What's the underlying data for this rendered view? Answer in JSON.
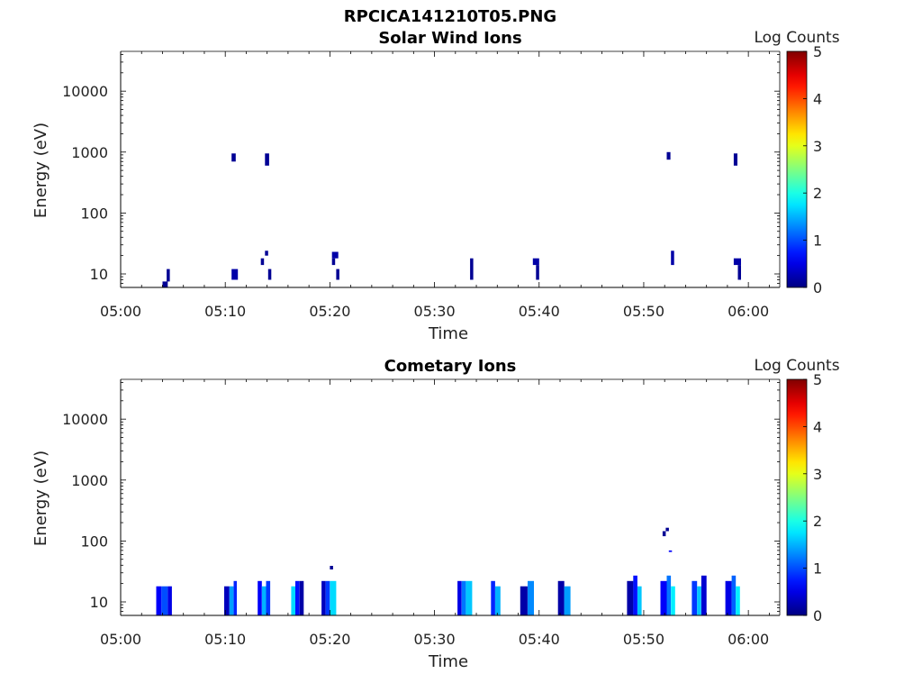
{
  "figure_title": "RPCICA141210T05.PNG",
  "colormap": {
    "low": "#00007f",
    "mid": "#00c8ff",
    "high": "#7f0000"
  },
  "chart_data": [
    {
      "type": "heatmap",
      "title": "Solar Wind Ions",
      "xlabel": "Time",
      "ylabel": "Energy (eV)",
      "xscale": "time",
      "yscale": "log",
      "xlim": [
        "05:00",
        "06:03"
      ],
      "ylim": [
        6,
        45000
      ],
      "xticks": [
        "05:00",
        "05:10",
        "05:20",
        "05:30",
        "05:40",
        "05:50",
        "06:00"
      ],
      "yticks": [
        "10",
        "100",
        "1000",
        "10000"
      ],
      "colorbar": {
        "label": "Log Counts",
        "min": 0,
        "max": 5,
        "ticks": [
          "0",
          "1",
          "2",
          "3",
          "4",
          "5"
        ]
      },
      "cells": [
        {
          "t": "05:04.0",
          "dt": 0.5,
          "e0": 6,
          "e1": 7.5,
          "v": 0.1
        },
        {
          "t": "05:04.4",
          "dt": 0.3,
          "e0": 7.5,
          "e1": 12,
          "v": 0.1
        },
        {
          "t": "05:10.6",
          "dt": 0.4,
          "e0": 700,
          "e1": 950,
          "v": 0.1
        },
        {
          "t": "05:10.6",
          "dt": 0.6,
          "e0": 8,
          "e1": 12,
          "v": 0.2
        },
        {
          "t": "05:13.4",
          "dt": 0.3,
          "e0": 14,
          "e1": 18,
          "v": 0.1
        },
        {
          "t": "05:13.8",
          "dt": 0.3,
          "e0": 20,
          "e1": 24,
          "v": 0.1
        },
        {
          "t": "05:13.8",
          "dt": 0.4,
          "e0": 600,
          "e1": 950,
          "v": 0.1
        },
        {
          "t": "05:14.1",
          "dt": 0.3,
          "e0": 8,
          "e1": 12,
          "v": 0.1
        },
        {
          "t": "05:20.2",
          "dt": 0.6,
          "e0": 18,
          "e1": 23,
          "v": 0.2
        },
        {
          "t": "05:20.2",
          "dt": 0.3,
          "e0": 14,
          "e1": 18,
          "v": 0.1
        },
        {
          "t": "05:20.6",
          "dt": 0.3,
          "e0": 8,
          "e1": 12,
          "v": 0.1
        },
        {
          "t": "05:33.4",
          "dt": 0.3,
          "e0": 8,
          "e1": 18,
          "v": 0.1
        },
        {
          "t": "05:39.4",
          "dt": 0.6,
          "e0": 14,
          "e1": 18,
          "v": 0.2
        },
        {
          "t": "05:39.7",
          "dt": 0.3,
          "e0": 8,
          "e1": 14,
          "v": 0.1
        },
        {
          "t": "05:52.2",
          "dt": 0.35,
          "e0": 750,
          "e1": 1000,
          "v": 0.1
        },
        {
          "t": "05:52.6",
          "dt": 0.3,
          "e0": 14,
          "e1": 24,
          "v": 0.2
        },
        {
          "t": "05:58.6",
          "dt": 0.35,
          "e0": 600,
          "e1": 950,
          "v": 0.1
        },
        {
          "t": "05:58.6",
          "dt": 0.7,
          "e0": 14,
          "e1": 18,
          "v": 0.2
        },
        {
          "t": "05:59.0",
          "dt": 0.3,
          "e0": 8,
          "e1": 14,
          "v": 0.1
        }
      ]
    },
    {
      "type": "heatmap",
      "title": "Cometary Ions",
      "xlabel": "Time",
      "ylabel": "Energy (eV)",
      "xscale": "time",
      "yscale": "log",
      "xlim": [
        "05:00",
        "06:03"
      ],
      "ylim": [
        6,
        45000
      ],
      "xticks": [
        "05:00",
        "05:10",
        "05:20",
        "05:30",
        "05:40",
        "05:50",
        "06:00"
      ],
      "yticks": [
        "10",
        "100",
        "1000",
        "10000"
      ],
      "colorbar": {
        "label": "Log Counts",
        "min": 0,
        "max": 5,
        "ticks": [
          "0",
          "1",
          "2",
          "3",
          "4",
          "5"
        ]
      },
      "cells": [
        {
          "t": "05:03.4",
          "dt": 0.5,
          "e0": 6,
          "e1": 18,
          "v": 0.6
        },
        {
          "t": "05:03.9",
          "dt": 0.6,
          "e0": 6,
          "e1": 18,
          "v": 1.0
        },
        {
          "t": "05:04.5",
          "dt": 0.4,
          "e0": 6,
          "e1": 18,
          "v": 0.5
        },
        {
          "t": "05:09.9",
          "dt": 0.5,
          "e0": 6,
          "e1": 18,
          "v": 0.3
        },
        {
          "t": "05:10.4",
          "dt": 0.4,
          "e0": 6,
          "e1": 18,
          "v": 1.4
        },
        {
          "t": "05:10.8",
          "dt": 0.3,
          "e0": 6,
          "e1": 22,
          "v": 0.8
        },
        {
          "t": "05:13.1",
          "dt": 0.4,
          "e0": 6,
          "e1": 22,
          "v": 0.6
        },
        {
          "t": "05:13.5",
          "dt": 0.4,
          "e0": 6,
          "e1": 18,
          "v": 1.5
        },
        {
          "t": "05:13.9",
          "dt": 0.4,
          "e0": 6,
          "e1": 22,
          "v": 0.9
        },
        {
          "t": "05:16.3",
          "dt": 0.4,
          "e0": 6,
          "e1": 18,
          "v": 1.7
        },
        {
          "t": "05:16.7",
          "dt": 0.4,
          "e0": 6,
          "e1": 22,
          "v": 0.7
        },
        {
          "t": "05:17.1",
          "dt": 0.4,
          "e0": 6,
          "e1": 22,
          "v": 0.2
        },
        {
          "t": "05:19.2",
          "dt": 0.4,
          "e0": 6,
          "e1": 22,
          "v": 0.3
        },
        {
          "t": "05:19.6",
          "dt": 0.4,
          "e0": 6,
          "e1": 22,
          "v": 0.9
        },
        {
          "t": "05:20.0",
          "dt": 0.6,
          "e0": 6,
          "e1": 22,
          "v": 1.7
        },
        {
          "t": "05:20.0",
          "dt": 0.3,
          "e0": 34,
          "e1": 39,
          "v": 0.1
        },
        {
          "t": "05:32.2",
          "dt": 0.4,
          "e0": 6,
          "e1": 22,
          "v": 0.5
        },
        {
          "t": "05:32.6",
          "dt": 0.4,
          "e0": 6,
          "e1": 22,
          "v": 1.2
        },
        {
          "t": "05:33.0",
          "dt": 0.6,
          "e0": 6,
          "e1": 22,
          "v": 1.6
        },
        {
          "t": "05:35.4",
          "dt": 0.4,
          "e0": 6,
          "e1": 22,
          "v": 0.8
        },
        {
          "t": "05:35.8",
          "dt": 0.5,
          "e0": 6,
          "e1": 18,
          "v": 1.5
        },
        {
          "t": "05:38.2",
          "dt": 0.7,
          "e0": 6,
          "e1": 18,
          "v": 0.2
        },
        {
          "t": "05:38.9",
          "dt": 0.6,
          "e0": 6,
          "e1": 22,
          "v": 1.3
        },
        {
          "t": "05:41.8",
          "dt": 0.6,
          "e0": 6,
          "e1": 22,
          "v": 0.2
        },
        {
          "t": "05:42.4",
          "dt": 0.6,
          "e0": 6,
          "e1": 18,
          "v": 1.4
        },
        {
          "t": "05:48.4",
          "dt": 0.6,
          "e0": 6,
          "e1": 22,
          "v": 0.2
        },
        {
          "t": "05:49.0",
          "dt": 0.4,
          "e0": 6,
          "e1": 27,
          "v": 0.7
        },
        {
          "t": "05:49.4",
          "dt": 0.4,
          "e0": 6,
          "e1": 18,
          "v": 1.6
        },
        {
          "t": "05:51.6",
          "dt": 0.6,
          "e0": 6,
          "e1": 22,
          "v": 0.6
        },
        {
          "t": "05:52.2",
          "dt": 0.4,
          "e0": 6,
          "e1": 27,
          "v": 1.2
        },
        {
          "t": "05:52.6",
          "dt": 0.4,
          "e0": 6,
          "e1": 18,
          "v": 1.8
        },
        {
          "t": "05:51.8",
          "dt": 0.3,
          "e0": 120,
          "e1": 145,
          "v": 0.1
        },
        {
          "t": "05:52.1",
          "dt": 0.3,
          "e0": 145,
          "e1": 165,
          "v": 0.1
        },
        {
          "t": "05:52.4",
          "dt": 0.3,
          "e0": 66,
          "e1": 70,
          "v": 0.6
        },
        {
          "t": "05:54.6",
          "dt": 0.5,
          "e0": 6,
          "e1": 22,
          "v": 0.9
        },
        {
          "t": "05:55.1",
          "dt": 0.4,
          "e0": 6,
          "e1": 18,
          "v": 1.6
        },
        {
          "t": "05:55.5",
          "dt": 0.5,
          "e0": 6,
          "e1": 27,
          "v": 0.4
        },
        {
          "t": "05:57.8",
          "dt": 0.6,
          "e0": 6,
          "e1": 22,
          "v": 0.5
        },
        {
          "t": "05:58.4",
          "dt": 0.4,
          "e0": 6,
          "e1": 27,
          "v": 1.1
        },
        {
          "t": "05:58.8",
          "dt": 0.4,
          "e0": 6,
          "e1": 18,
          "v": 1.8
        }
      ]
    }
  ]
}
